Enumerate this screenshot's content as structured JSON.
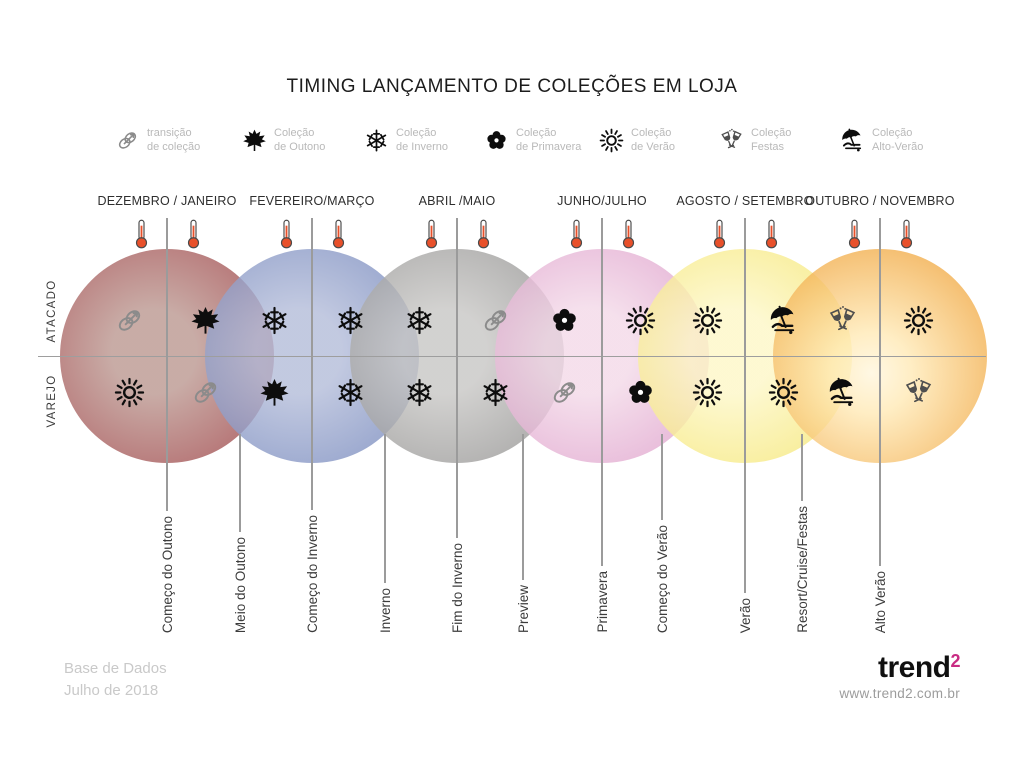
{
  "title": "TIMING LANÇAMENTO DE COLEÇÕES EM LOJA",
  "legend": {
    "items": [
      {
        "icon": "transition-icon",
        "line1": "transição",
        "line2": "de coleção"
      },
      {
        "icon": "autumn-leaf-icon",
        "line1": "Coleção",
        "line2": "de Outono"
      },
      {
        "icon": "snowflake-icon",
        "line1": "Coleção",
        "line2": "de Inverno"
      },
      {
        "icon": "flower-icon",
        "line1": "Coleção",
        "line2": "de Primavera"
      },
      {
        "icon": "sun-icon",
        "line1": "Coleção",
        "line2": "de Verão"
      },
      {
        "icon": "party-glasses-icon",
        "line1": "Coleção",
        "line2": "Festas"
      },
      {
        "icon": "beach-umbrella-icon",
        "line1": "Coleção",
        "line2": "Alto-Verão"
      }
    ]
  },
  "months": [
    "DEZEMBRO / JANEIRO",
    "FEVEREIRO/MARÇO",
    "ABRIL /MAIO",
    "JUNHO/JULHO",
    "AGOSTO / SETEMBRO",
    "OUTUBRO / NOVEMBRO"
  ],
  "rows": {
    "top": "ATACADO",
    "bottom": "VAREJO"
  },
  "circles": [
    {
      "name": "dezembro-janeiro",
      "inner": "#bb9790",
      "outer": "#9d3e42",
      "glow": ""
    },
    {
      "name": "fevereiro-marco",
      "inner": "#b3bcd9",
      "outer": "#7285bb",
      "glow": ""
    },
    {
      "name": "abril-maio",
      "inner": "#c7c6c4",
      "outer": "#908f8e",
      "glow": ""
    },
    {
      "name": "junho-julho",
      "inner": "#f3d9e8",
      "outer": "#dd9cc9",
      "glow": ""
    },
    {
      "name": "agosto-setembro",
      "inner": "#fdf7c6",
      "outer": "#f4e56d",
      "glow": ""
    },
    {
      "name": "outubro-novembro",
      "inner": "#ffe9b5",
      "outer": "#ee9d2f",
      "glow": "#fff6dd"
    }
  ],
  "grid": {
    "atacado": [
      "transition-icon",
      "autumn-leaf-icon",
      "snowflake-icon",
      "snowflake-icon",
      "snowflake-icon",
      "transition-icon",
      "flower-icon",
      "sun-icon",
      "sun-icon",
      "beach-umbrella-icon",
      "party-glasses-icon",
      "sun-icon"
    ],
    "varejo": [
      "sun-icon",
      "transition-icon",
      "autumn-leaf-icon",
      "snowflake-icon",
      "snowflake-icon",
      "snowflake-icon",
      "transition-icon",
      "flower-icon",
      "sun-icon",
      "sun-icon",
      "beach-umbrella-icon",
      "party-glasses-icon"
    ]
  },
  "ticks": [
    {
      "label": "Começo do Outono",
      "long": true
    },
    {
      "label": "Meio do Outono",
      "long": false
    },
    {
      "label": "Começo do Inverno",
      "long": true
    },
    {
      "label": "Inverno",
      "long": false
    },
    {
      "label": "Fim do Inverno",
      "long": true
    },
    {
      "label": "Preview",
      "long": false
    },
    {
      "label": "Primavera",
      "long": true
    },
    {
      "label": "Começo do Verão",
      "long": false
    },
    {
      "label": "Verão",
      "long": true
    },
    {
      "label": "Resort/Cruise/Festas",
      "long": false
    },
    {
      "label": "Alto Verão",
      "long": true
    }
  ],
  "footer": {
    "source_line1": "Base de Dados",
    "source_line2": "Julho de 2018",
    "brand": "trend",
    "brand_sup": "2",
    "brand_url": "www.trend2.com.br"
  },
  "colors": {
    "thermometer": "#e8502a",
    "brand_accent": "#c92b83",
    "line": "#9b9b9b",
    "icon_black": "#0d0d0d",
    "icon_gray": "#8b8b8b",
    "glasses_gray": "#4f4f4f",
    "legend_text": "#b9b9b9",
    "tick_text": "#3c3c3c"
  }
}
